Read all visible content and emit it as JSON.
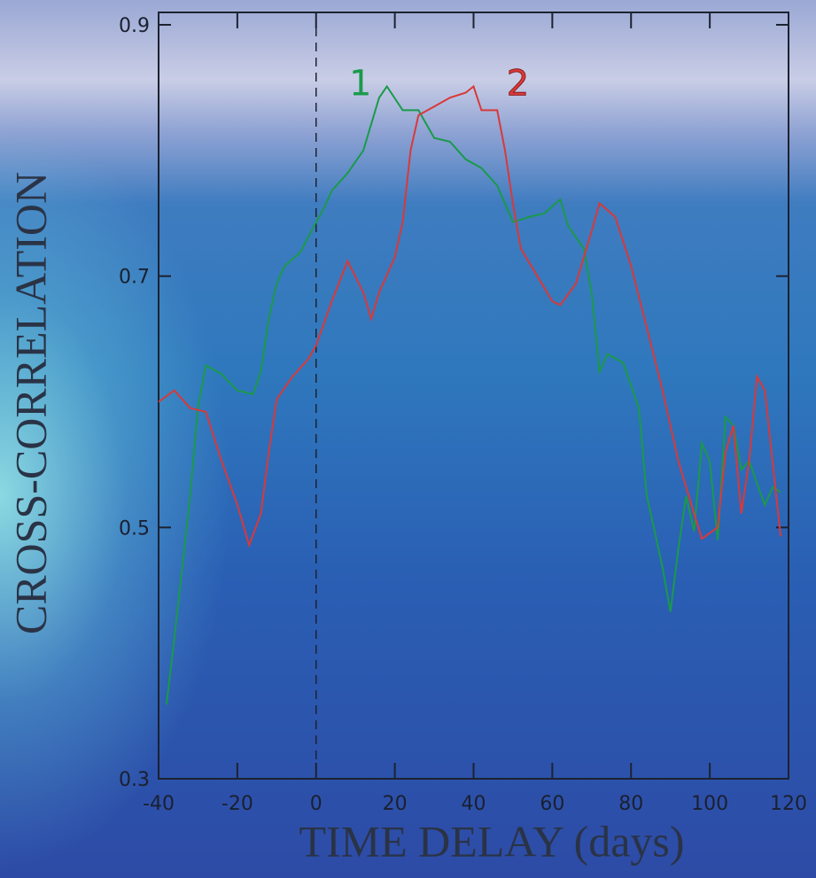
{
  "chart_data": {
    "type": "line",
    "xlabel": "TIME DELAY (days)",
    "ylabel": "CROSS-CORRELATION",
    "xlim": [
      -40,
      120
    ],
    "ylim": [
      0.3,
      0.9
    ],
    "xticks": [
      -40,
      -20,
      0,
      20,
      40,
      60,
      80,
      100,
      120
    ],
    "yticks": [
      0.3,
      0.5,
      0.7,
      0.9
    ],
    "vline": 0,
    "series": [
      {
        "name": "1",
        "color": "#1a9a4a",
        "x": [
          -38,
          -36,
          -34,
          -32,
          -30,
          -28,
          -24,
          -20,
          -16,
          -14,
          -12,
          -10,
          -8,
          -4,
          0,
          2,
          4,
          8,
          12,
          16,
          18,
          22,
          26,
          30,
          34,
          38,
          42,
          46,
          50,
          54,
          58,
          62,
          64,
          68,
          70,
          72,
          74,
          78,
          82,
          84,
          86,
          88,
          90,
          92,
          94,
          96,
          98,
          100,
          102,
          104,
          106,
          108,
          110,
          112,
          114,
          116,
          118
        ],
        "values": [
          0.359,
          0.412,
          0.468,
          0.525,
          0.595,
          0.629,
          0.622,
          0.609,
          0.606,
          0.624,
          0.666,
          0.694,
          0.708,
          0.719,
          0.743,
          0.754,
          0.768,
          0.782,
          0.8,
          0.842,
          0.851,
          0.832,
          0.832,
          0.81,
          0.807,
          0.793,
          0.786,
          0.772,
          0.743,
          0.747,
          0.75,
          0.761,
          0.74,
          0.722,
          0.687,
          0.624,
          0.638,
          0.631,
          0.595,
          0.525,
          0.497,
          0.468,
          0.433,
          0.483,
          0.525,
          0.497,
          0.567,
          0.553,
          0.49,
          0.588,
          0.581,
          0.546,
          0.553,
          0.535,
          0.518,
          0.532,
          0.528
        ]
      },
      {
        "name": "2",
        "color": "#d8393a",
        "x": [
          -40,
          -36,
          -32,
          -28,
          -24,
          -20,
          -17,
          -14,
          -12,
          -10,
          -6,
          -2,
          0,
          4,
          8,
          12,
          14,
          16,
          20,
          22,
          24,
          26,
          30,
          34,
          38,
          40,
          42,
          46,
          48,
          50,
          52,
          56,
          60,
          62,
          66,
          70,
          72,
          76,
          80,
          84,
          88,
          92,
          96,
          98,
          102,
          104,
          106,
          108,
          110,
          112,
          114,
          118
        ],
        "values": [
          0.6,
          0.609,
          0.595,
          0.592,
          0.553,
          0.518,
          0.486,
          0.511,
          0.56,
          0.602,
          0.62,
          0.634,
          0.645,
          0.68,
          0.712,
          0.687,
          0.666,
          0.687,
          0.715,
          0.743,
          0.8,
          0.828,
          0.835,
          0.842,
          0.846,
          0.851,
          0.832,
          0.832,
          0.8,
          0.758,
          0.722,
          0.701,
          0.68,
          0.677,
          0.694,
          0.736,
          0.758,
          0.747,
          0.708,
          0.659,
          0.609,
          0.553,
          0.511,
          0.491,
          0.5,
          0.56,
          0.581,
          0.511,
          0.553,
          0.62,
          0.609,
          0.493
        ]
      }
    ]
  }
}
